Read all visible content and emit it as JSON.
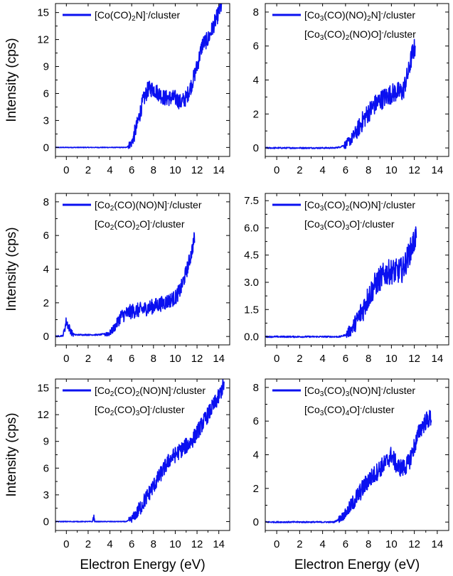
{
  "figure": {
    "ylabel": "Intensity (cps)",
    "xlabel": "Electron Energy (eV)",
    "series_color": "#0a10f0"
  },
  "chart_data": [
    {
      "type": "line",
      "panel": "row1-left",
      "xlim": [
        -1,
        15
      ],
      "ylim": [
        -1,
        16
      ],
      "xticks": [
        0,
        2,
        4,
        6,
        8,
        10,
        12,
        14
      ],
      "yticks": [
        0,
        3,
        6,
        9,
        12,
        15
      ],
      "ytick_labels": [
        "0",
        "3",
        "6",
        "9",
        "12",
        "15"
      ],
      "ylabel": "Intensity (cps)",
      "xlabel": "",
      "legend": [
        {
          "parts": [
            [
              "[Co(CO)",
              "n"
            ],
            [
              "2",
              "sub"
            ],
            [
              "N]",
              "n"
            ],
            [
              "-",
              "sup"
            ],
            [
              "/cluster",
              "n"
            ]
          ],
          "line": true
        }
      ],
      "series": [
        {
          "x": [
            -1,
            5.5,
            6,
            6.5,
            7,
            7.5,
            8,
            8.5,
            9,
            9.5,
            10,
            10.5,
            11,
            11.5,
            12,
            12.5,
            13,
            13.5,
            14,
            14.3
          ],
          "values": [
            0,
            0,
            0.5,
            2.5,
            5,
            6.5,
            6.5,
            6,
            5.5,
            5.5,
            5.5,
            5,
            5.5,
            7,
            9,
            11.5,
            12,
            13.5,
            15,
            16
          ],
          "noise": 0.9
        }
      ]
    },
    {
      "type": "line",
      "panel": "row1-right",
      "xlim": [
        -1,
        15
      ],
      "ylim": [
        -0.5,
        8.5
      ],
      "xticks": [
        0,
        2,
        4,
        6,
        8,
        10,
        12,
        14
      ],
      "yticks": [
        0,
        2,
        4,
        6,
        8
      ],
      "ytick_labels": [
        "0",
        "2",
        "4",
        "6",
        "8"
      ],
      "ylabel": "",
      "xlabel": "",
      "legend": [
        {
          "parts": [
            [
              "[Co",
              "n"
            ],
            [
              "3",
              "sub"
            ],
            [
              "(CO)(NO)",
              "n"
            ],
            [
              "2",
              "sub"
            ],
            [
              "N]",
              "n"
            ],
            [
              "-",
              "sup"
            ],
            [
              "/cluster",
              "n"
            ]
          ],
          "line": true
        },
        {
          "parts": [
            [
              "[Co",
              "n"
            ],
            [
              "3",
              "sub"
            ],
            [
              "(CO)",
              "n"
            ],
            [
              "2",
              "sub"
            ],
            [
              "(NO)O]",
              "n"
            ],
            [
              "-",
              "sup"
            ],
            [
              "/cluster",
              "n"
            ]
          ],
          "line": false
        }
      ],
      "series": [
        {
          "x": [
            -1,
            5,
            5.5,
            6,
            6.5,
            7,
            7.5,
            8,
            8.5,
            9,
            9.5,
            10,
            10.5,
            11,
            11.5,
            11.8,
            12.1
          ],
          "values": [
            0,
            0,
            0.05,
            0.2,
            0.5,
            1,
            1.6,
            2.1,
            2.5,
            2.8,
            3,
            3.2,
            3.3,
            3.3,
            4.5,
            5.5,
            6
          ],
          "noise": 0.6
        }
      ]
    },
    {
      "type": "line",
      "panel": "row2-left",
      "xlim": [
        -1,
        15
      ],
      "ylim": [
        -0.5,
        8.5
      ],
      "xticks": [
        0,
        2,
        4,
        6,
        8,
        10,
        12,
        14
      ],
      "yticks": [
        0,
        2,
        4,
        6,
        8
      ],
      "ytick_labels": [
        "0",
        "2",
        "4",
        "6",
        "8"
      ],
      "ylabel": "Intensity (cps)",
      "xlabel": "",
      "legend": [
        {
          "parts": [
            [
              "[Co",
              "n"
            ],
            [
              "2",
              "sub"
            ],
            [
              "(CO)(NO)N]",
              "n"
            ],
            [
              "-",
              "sup"
            ],
            [
              "/cluster",
              "n"
            ]
          ],
          "line": true
        },
        {
          "parts": [
            [
              "[Co",
              "n"
            ],
            [
              "2",
              "sub"
            ],
            [
              "(CO)",
              "n"
            ],
            [
              "2",
              "sub"
            ],
            [
              "O]",
              "n"
            ],
            [
              "-",
              "sup"
            ],
            [
              "/cluster",
              "n"
            ]
          ],
          "line": false
        }
      ],
      "series": [
        {
          "x": [
            -1,
            -0.3,
            0,
            0.2,
            0.5,
            0.8,
            1.5,
            3,
            4,
            4.5,
            5,
            6,
            7,
            8,
            9,
            10,
            10.5,
            11,
            11.5,
            11.8
          ],
          "values": [
            0,
            0.05,
            0.9,
            0.6,
            0.2,
            0.1,
            0.1,
            0.1,
            0.2,
            0.6,
            1.2,
            1.5,
            1.6,
            1.8,
            2,
            2.3,
            2.8,
            3.8,
            5,
            6
          ],
          "noise": 0.45
        }
      ]
    },
    {
      "type": "line",
      "panel": "row2-right",
      "xlim": [
        -1,
        15
      ],
      "ylim": [
        -0.45,
        7.9
      ],
      "xticks": [
        0,
        2,
        4,
        6,
        8,
        10,
        12,
        14
      ],
      "yticks": [
        0,
        1.5,
        3,
        4.5,
        6,
        7.5
      ],
      "ytick_labels": [
        "0.0",
        "1.5",
        "3.0",
        "4.5",
        "6.0",
        "7.5"
      ],
      "ylabel": "",
      "xlabel": "",
      "legend": [
        {
          "parts": [
            [
              "[Co",
              "n"
            ],
            [
              "3",
              "sub"
            ],
            [
              "(CO)",
              "n"
            ],
            [
              "2",
              "sub"
            ],
            [
              "(NO)N]",
              "n"
            ],
            [
              "-",
              "sup"
            ],
            [
              "/cluster",
              "n"
            ]
          ],
          "line": true
        },
        {
          "parts": [
            [
              "[Co",
              "n"
            ],
            [
              "3",
              "sub"
            ],
            [
              "(CO)",
              "n"
            ],
            [
              "3",
              "sub"
            ],
            [
              "O]",
              "n"
            ],
            [
              "-",
              "sup"
            ],
            [
              "/cluster",
              "n"
            ]
          ],
          "line": false
        }
      ],
      "series": [
        {
          "x": [
            -1,
            5.5,
            6,
            6.5,
            7,
            7.5,
            8,
            8.5,
            9,
            9.5,
            10,
            10.5,
            11,
            11.5,
            12,
            12.2
          ],
          "values": [
            0,
            0,
            0.1,
            0.4,
            0.9,
            1.5,
            2.2,
            2.8,
            3.2,
            3.5,
            3.6,
            3.6,
            3.7,
            4.5,
            5.3,
            5.7
          ],
          "noise": 0.7
        }
      ]
    },
    {
      "type": "line",
      "panel": "row3-left",
      "xlim": [
        -1,
        15
      ],
      "ylim": [
        -1,
        16
      ],
      "xticks": [
        0,
        2,
        4,
        6,
        8,
        10,
        12,
        14
      ],
      "yticks": [
        0,
        3,
        6,
        9,
        12,
        15
      ],
      "ytick_labels": [
        "0",
        "3",
        "6",
        "9",
        "12",
        "15"
      ],
      "ylabel": "Intensity (cps)",
      "xlabel": "Electron Energy (eV)",
      "legend": [
        {
          "parts": [
            [
              "[Co",
              "n"
            ],
            [
              "2",
              "sub"
            ],
            [
              "(CO)",
              "n"
            ],
            [
              "2",
              "sub"
            ],
            [
              "(NO)N]",
              "n"
            ],
            [
              "-",
              "sup"
            ],
            [
              "/cluster",
              "n"
            ]
          ],
          "line": true
        },
        {
          "parts": [
            [
              "[Co",
              "n"
            ],
            [
              "2",
              "sub"
            ],
            [
              "(CO)",
              "n"
            ],
            [
              "3",
              "sub"
            ],
            [
              "O]",
              "n"
            ],
            [
              "-",
              "sup"
            ],
            [
              "/cluster",
              "n"
            ]
          ],
          "line": false
        }
      ],
      "series": [
        {
          "x": [
            -1,
            2.4,
            2.5,
            2.6,
            5.5,
            6,
            6.5,
            7,
            7.5,
            8,
            8.5,
            9,
            9.5,
            10,
            10.5,
            11,
            11.5,
            12,
            12.5,
            13,
            13.5,
            14,
            14.5
          ],
          "values": [
            0,
            0,
            0.6,
            0,
            0,
            0.3,
            1,
            2,
            3,
            4,
            5,
            6,
            7,
            7.5,
            8,
            8.5,
            9,
            10,
            11,
            12,
            13,
            14,
            15.5
          ],
          "noise": 0.9
        }
      ]
    },
    {
      "type": "line",
      "panel": "row3-right",
      "xlim": [
        -1,
        15
      ],
      "ylim": [
        -0.5,
        8.5
      ],
      "xticks": [
        0,
        2,
        4,
        6,
        8,
        10,
        12,
        14
      ],
      "yticks": [
        0,
        2,
        4,
        6,
        8
      ],
      "ytick_labels": [
        "0",
        "2",
        "4",
        "6",
        "8"
      ],
      "ylabel": "",
      "xlabel": "Electron Energy (eV)",
      "legend": [
        {
          "parts": [
            [
              "[Co",
              "n"
            ],
            [
              "3",
              "sub"
            ],
            [
              "(CO)",
              "n"
            ],
            [
              "3",
              "sub"
            ],
            [
              "(NO)N]",
              "n"
            ],
            [
              "-",
              "sup"
            ],
            [
              "/cluster",
              "n"
            ]
          ],
          "line": true
        },
        {
          "parts": [
            [
              "[Co",
              "n"
            ],
            [
              "3",
              "sub"
            ],
            [
              "(CO)",
              "n"
            ],
            [
              "4",
              "sub"
            ],
            [
              "O]",
              "n"
            ],
            [
              "-",
              "sup"
            ],
            [
              "/cluster",
              "n"
            ]
          ],
          "line": false
        }
      ],
      "series": [
        {
          "x": [
            -1,
            5,
            5.5,
            6,
            6.5,
            7,
            7.5,
            8,
            8.5,
            9,
            9.5,
            10,
            10.5,
            11,
            11.5,
            12,
            12.5,
            13,
            13.5
          ],
          "values": [
            0,
            0,
            0.2,
            0.5,
            1,
            1.5,
            2,
            2.5,
            2.8,
            3.2,
            3.5,
            4,
            3.3,
            3.2,
            3.5,
            4.5,
            5.5,
            6,
            6.2
          ],
          "noise": 0.55
        }
      ]
    }
  ]
}
